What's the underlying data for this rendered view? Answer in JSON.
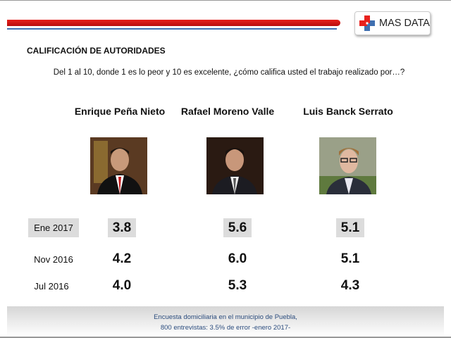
{
  "brand": {
    "name": "MAS DATA",
    "colors": {
      "red": "#e8201c",
      "blue": "#3f6fb0"
    }
  },
  "title": "CALIFICACIÓN DE AUTORIDADES",
  "question": "Del 1 al 10, donde 1 es lo peor y 10 es excelente, ¿cómo califica usted el trabajo realizado por…?",
  "people": [
    {
      "name": "Enrique Peña Nieto"
    },
    {
      "name": "Rafael Moreno Valle"
    },
    {
      "name": "Luis Banck Serrato"
    }
  ],
  "rows": [
    {
      "label": "Ene 2017",
      "values": [
        "3.8",
        "5.6",
        "5.1"
      ],
      "highlight": true
    },
    {
      "label": "Nov 2016",
      "values": [
        "4.2",
        "6.0",
        "5.1"
      ]
    },
    {
      "label": "Jul 2016",
      "values": [
        "4.0",
        "5.3",
        "4.3"
      ]
    }
  ],
  "footer": {
    "line1": "Encuesta domiciliaria en el municipio de Puebla,",
    "line2": "800 entrevistas: 3.5% de error -enero 2017-"
  }
}
